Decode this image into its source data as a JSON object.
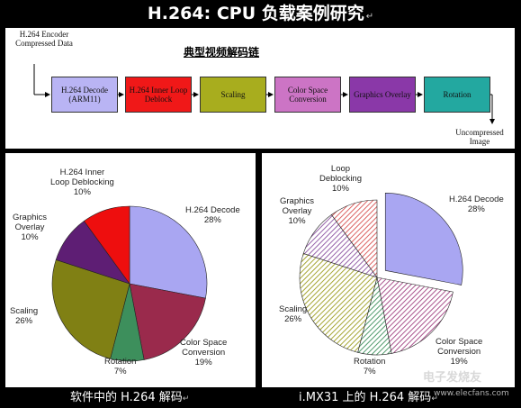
{
  "title": "H.264: CPU 负载案例研究",
  "pipeline": {
    "input_label": "H.264 Encoder Compressed Data",
    "chain_title": "典型视频解码链",
    "stages": [
      {
        "label": "H.264 Decode (ARM11)",
        "color": "#b9b4f4"
      },
      {
        "label": "H.264 Inner Loop Deblock",
        "color": "#f01818"
      },
      {
        "label": "Scaling",
        "color": "#a8ad1e"
      },
      {
        "label": "Color Space Conversion",
        "color": "#cc74c5"
      },
      {
        "label": "Graphics Overlay",
        "color": "#8a38a8"
      },
      {
        "label": "Rotation",
        "color": "#23a8a0"
      }
    ],
    "output_label": "Uncompressed Image"
  },
  "chart_data": [
    {
      "type": "pie",
      "caption": "软件中的 H.264 解码",
      "slices": [
        {
          "name": "H.264 Decode",
          "value": 28,
          "label": "28%",
          "color": "#a9a6f2"
        },
        {
          "name": "Color Space Conversion",
          "value": 19,
          "label": "19%",
          "color": "#9a2a4c"
        },
        {
          "name": "Rotation",
          "value": 7,
          "label": "7%",
          "color": "#3d8f5c"
        },
        {
          "name": "Scaling",
          "value": 26,
          "label": "26%",
          "color": "#808014"
        },
        {
          "name": "Graphics Overlay",
          "value": 10,
          "label": "10%",
          "color": "#5e1e74"
        },
        {
          "name": "H.264 Inner Loop Deblocking",
          "value": 10,
          "label": "10%",
          "color": "#ee0e0e"
        }
      ]
    },
    {
      "type": "pie",
      "caption": "i.MX31 上的 H.264 解码",
      "slices": [
        {
          "name": "H.264 Decode",
          "value": 28,
          "label": "28%",
          "color": "#a9a6f2"
        },
        {
          "name": "Color Space Conversion",
          "value": 19,
          "label": "19%",
          "color": "#a04080"
        },
        {
          "name": "Rotation",
          "value": 7,
          "label": "7%",
          "color": "#3d8f5c"
        },
        {
          "name": "Scaling",
          "value": 26,
          "label": "26%",
          "color": "#9c9c1e"
        },
        {
          "name": "Graphics Overlay",
          "value": 10,
          "label": "10%",
          "color": "#8a50a0"
        },
        {
          "name": "Loop Deblocking",
          "value": 10,
          "label": "10%",
          "color": "#d85050"
        }
      ]
    }
  ],
  "left_labels": {
    "h264_decode": [
      "H.264 Decode",
      "28%"
    ],
    "csc": [
      "Color Space",
      "Conversion",
      "19%"
    ],
    "rotation": [
      "Rotation",
      "7%"
    ],
    "scaling": [
      "Scaling",
      "26%"
    ],
    "graphics": [
      "Graphics",
      "Overlay",
      "10%"
    ],
    "deblock": [
      "H.264 Inner",
      "Loop Deblocking",
      "10%"
    ]
  },
  "right_labels": {
    "h264_decode": [
      "H.264 Decode",
      "28%"
    ],
    "csc": [
      "Color Space",
      "Conversion",
      "19%"
    ],
    "rotation": [
      "Rotation",
      "7%"
    ],
    "scaling": [
      "Scaling",
      "26%"
    ],
    "graphics": [
      "Graphics",
      "Overlay",
      "10%"
    ],
    "deblock": [
      "Loop",
      "Deblocking",
      "10%"
    ]
  },
  "watermark": {
    "text": "电子发烧友",
    "url": "www.elecfans.com"
  }
}
